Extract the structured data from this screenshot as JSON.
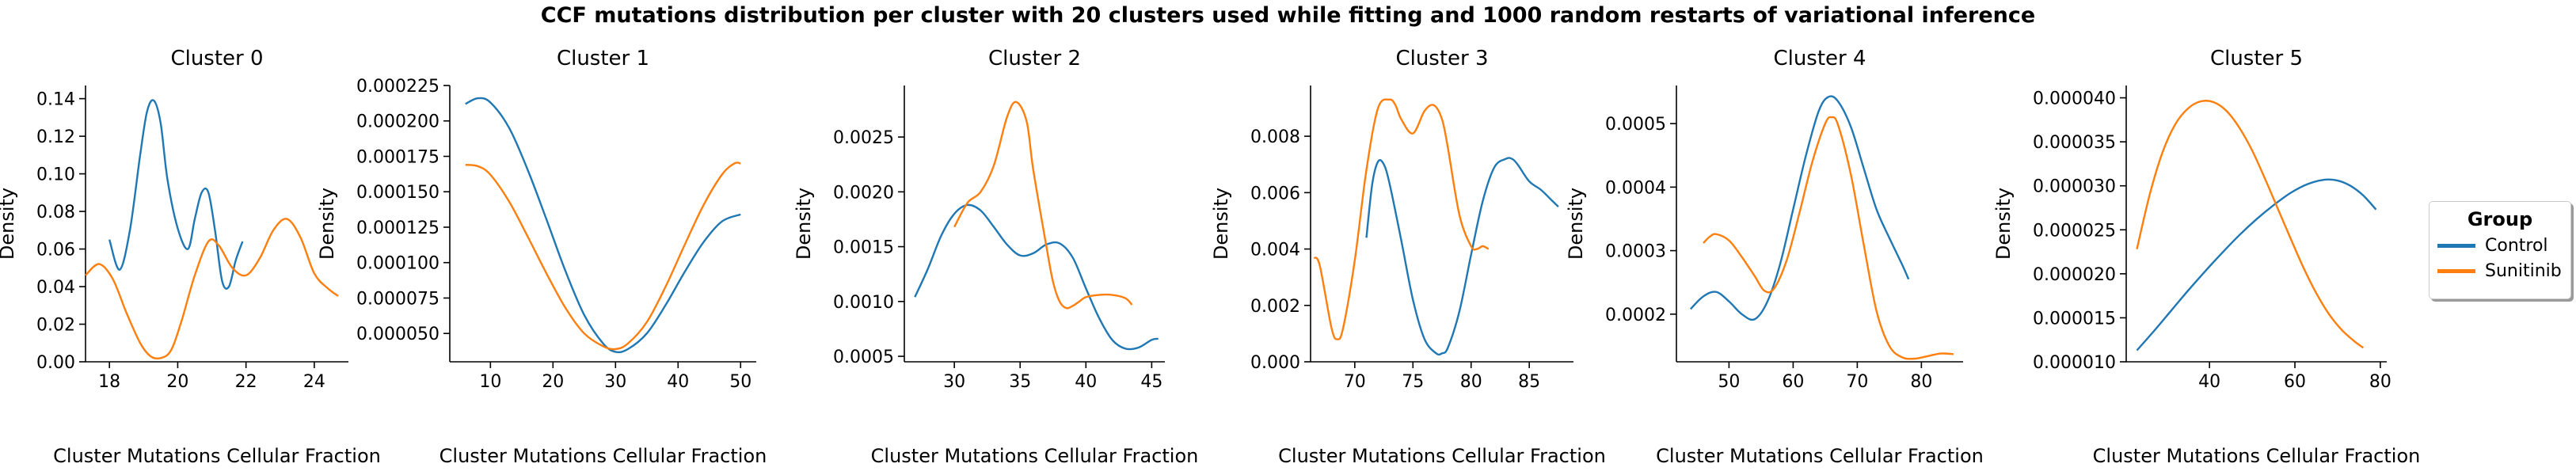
{
  "figure": {
    "suptitle": "CCF mutations distribution per cluster with 20 clusters used while fitting and 1000 random restarts of variational inference"
  },
  "legend": {
    "title": "Group",
    "placement": "right",
    "entries": [
      {
        "label": "Control",
        "color": "#1f77b4"
      },
      {
        "label": "Sunitinib",
        "color": "#ff7f0e"
      }
    ]
  },
  "chart_data": [
    {
      "type": "line",
      "title": "Cluster 0",
      "xlabel": "Cluster Mutations Cellular Fraction",
      "ylabel": "Density",
      "xlim": [
        17.3,
        25.0
      ],
      "ylim": [
        0,
        0.147
      ],
      "xticks": [
        18,
        20,
        22,
        24
      ],
      "yticks": [
        0.0,
        0.02,
        0.04,
        0.06,
        0.08,
        0.1,
        0.12,
        0.14
      ],
      "ytick_labels": [
        "0.00",
        "0.02",
        "0.04",
        "0.06",
        "0.08",
        "0.10",
        "0.12",
        "0.14"
      ],
      "series": [
        {
          "name": "Control",
          "color": "#1f77b4",
          "x": [
            18.0,
            18.3,
            18.6,
            18.9,
            19.1,
            19.3,
            19.5,
            19.7,
            20.0,
            20.3,
            20.5,
            20.7,
            20.9,
            21.1,
            21.3,
            21.5,
            21.7,
            21.9
          ],
          "y": [
            0.065,
            0.049,
            0.07,
            0.11,
            0.133,
            0.139,
            0.127,
            0.097,
            0.071,
            0.06,
            0.076,
            0.09,
            0.09,
            0.069,
            0.043,
            0.04,
            0.054,
            0.064
          ]
        },
        {
          "name": "Sunitinib",
          "color": "#ff7f0e",
          "x": [
            17.3,
            17.7,
            18.1,
            18.5,
            18.9,
            19.2,
            19.5,
            19.8,
            20.1,
            20.5,
            20.9,
            21.2,
            21.6,
            22.0,
            22.4,
            22.8,
            23.2,
            23.6,
            24.0,
            24.4,
            24.7
          ],
          "y": [
            0.046,
            0.052,
            0.044,
            0.026,
            0.01,
            0.003,
            0.002,
            0.006,
            0.021,
            0.046,
            0.064,
            0.062,
            0.05,
            0.046,
            0.055,
            0.07,
            0.076,
            0.066,
            0.047,
            0.039,
            0.035
          ]
        }
      ]
    },
    {
      "type": "line",
      "title": "Cluster 1",
      "xlabel": "Cluster Mutations Cellular Fraction",
      "ylabel": "Density",
      "xlim": [
        3.5,
        52.5
      ],
      "ylim": [
        3e-05,
        0.000225
      ],
      "xticks": [
        10,
        20,
        30,
        40,
        50
      ],
      "yticks": [
        5e-05,
        7.5e-05,
        0.0001,
        0.000125,
        0.00015,
        0.000175,
        0.0002,
        0.000225
      ],
      "ytick_labels": [
        "0.000050",
        "0.000075",
        "0.000100",
        "0.000125",
        "0.000150",
        "0.000175",
        "0.000200",
        "0.000225"
      ],
      "series": [
        {
          "name": "Control",
          "color": "#1f77b4",
          "x": [
            6,
            8,
            10,
            13,
            16,
            19,
            22,
            25,
            28,
            30,
            32,
            35,
            38,
            41,
            44,
            47,
            50
          ],
          "y": [
            0.000212,
            0.000216,
            0.000213,
            0.000195,
            0.000165,
            0.00013,
            9.4e-05,
            6.3e-05,
            4.3e-05,
            3.7e-05,
            3.9e-05,
            5e-05,
            7e-05,
            9.3e-05,
            0.000114,
            0.000129,
            0.000134
          ]
        },
        {
          "name": "Sunitinib",
          "color": "#ff7f0e",
          "x": [
            6,
            8,
            10,
            13,
            16,
            19,
            22,
            25,
            28,
            30,
            32,
            35,
            38,
            41,
            44,
            47,
            49,
            50
          ],
          "y": [
            0.000169,
            0.000168,
            0.000162,
            0.000143,
            0.000118,
            9.2e-05,
            6.8e-05,
            5e-05,
            4.1e-05,
            3.9e-05,
            4.3e-05,
            5.8e-05,
            8.3e-05,
            0.000112,
            0.00014,
            0.000162,
            0.00017,
            0.00017
          ]
        }
      ]
    },
    {
      "type": "line",
      "title": "Cluster 2",
      "xlabel": "Cluster Mutations Cellular Fraction",
      "ylabel": "Density",
      "xlim": [
        26.2,
        46.0
      ],
      "ylim": [
        0.00045,
        0.00297
      ],
      "xticks": [
        30,
        35,
        40,
        45
      ],
      "yticks": [
        0.0005,
        0.001,
        0.0015,
        0.002,
        0.0025
      ],
      "ytick_labels": [
        "0.0005",
        "0.0010",
        "0.0015",
        "0.0020",
        "0.0025"
      ],
      "series": [
        {
          "name": "Control",
          "color": "#1f77b4",
          "x": [
            27.0,
            28.0,
            29.0,
            30.0,
            31.0,
            32.0,
            33.0,
            34.0,
            35.0,
            36.0,
            37.0,
            38.0,
            39.0,
            40.0,
            41.0,
            42.0,
            43.0,
            44.0,
            45.0,
            45.5
          ],
          "y": [
            0.00104,
            0.0013,
            0.0016,
            0.0018,
            0.00188,
            0.00183,
            0.00168,
            0.00152,
            0.00142,
            0.00144,
            0.00152,
            0.00153,
            0.0014,
            0.00112,
            0.00085,
            0.00065,
            0.00057,
            0.00058,
            0.00065,
            0.00066
          ]
        },
        {
          "name": "Sunitinib",
          "color": "#ff7f0e",
          "x": [
            30.0,
            31.0,
            32.0,
            33.0,
            34.0,
            34.7,
            35.5,
            36.0,
            37.0,
            37.5,
            38.0,
            38.5,
            39.0,
            39.5,
            40.0,
            41.0,
            42.0,
            43.0,
            43.5
          ],
          "y": [
            0.00168,
            0.0019,
            0.002,
            0.00224,
            0.00268,
            0.00282,
            0.00264,
            0.0022,
            0.0015,
            0.00118,
            0.001,
            0.00094,
            0.00096,
            0.001,
            0.00104,
            0.00106,
            0.00106,
            0.00103,
            0.00097
          ]
        }
      ]
    },
    {
      "type": "line",
      "title": "Cluster 3",
      "xlabel": "Cluster Mutations Cellular Fraction",
      "ylabel": "Density",
      "xlim": [
        66.2,
        88.8
      ],
      "ylim": [
        0,
        0.0098
      ],
      "xticks": [
        70,
        75,
        80,
        85
      ],
      "yticks": [
        0.0,
        0.002,
        0.004,
        0.006,
        0.008
      ],
      "ytick_labels": [
        "0.000",
        "0.002",
        "0.004",
        "0.006",
        "0.008"
      ],
      "series": [
        {
          "name": "Control",
          "color": "#1f77b4",
          "x": [
            71.0,
            71.5,
            72.0,
            72.5,
            73.0,
            74.0,
            75.0,
            76.0,
            77.0,
            77.5,
            78.0,
            79.0,
            80.0,
            81.0,
            82.0,
            83.0,
            83.5,
            84.0,
            85.0,
            86.0,
            87.0,
            87.5
          ],
          "y": [
            0.0044,
            0.0063,
            0.0071,
            0.007,
            0.0063,
            0.0043,
            0.0022,
            0.0008,
            0.0003,
            0.0003,
            0.0005,
            0.0018,
            0.0038,
            0.0057,
            0.0069,
            0.0072,
            0.0072,
            0.007,
            0.0064,
            0.0061,
            0.0057,
            0.0055
          ]
        },
        {
          "name": "Sunitinib",
          "color": "#ff7f0e",
          "x": [
            66.5,
            67.0,
            68.0,
            68.5,
            69.0,
            70.0,
            71.0,
            72.0,
            73.0,
            73.5,
            74.0,
            75.0,
            76.0,
            76.8,
            77.5,
            78.0,
            79.0,
            80.0,
            80.5,
            81.0,
            81.5
          ],
          "y": [
            0.0037,
            0.0034,
            0.0012,
            0.0008,
            0.0012,
            0.0036,
            0.0068,
            0.009,
            0.0093,
            0.0091,
            0.0086,
            0.0081,
            0.0089,
            0.0091,
            0.0086,
            0.0076,
            0.0052,
            0.0041,
            0.004,
            0.0041,
            0.004
          ]
        }
      ]
    },
    {
      "type": "line",
      "title": "Cluster 4",
      "xlabel": "Cluster Mutations Cellular Fraction",
      "ylabel": "Density",
      "xlim": [
        41.8,
        86.5
      ],
      "ylim": [
        0.000125,
        0.00056
      ],
      "xticks": [
        50,
        60,
        70,
        80
      ],
      "yticks": [
        0.0002,
        0.0003,
        0.0004,
        0.0005
      ],
      "ytick_labels": [
        "0.0002",
        "0.0003",
        "0.0004",
        "0.0005"
      ],
      "series": [
        {
          "name": "Control",
          "color": "#1f77b4",
          "x": [
            44,
            46,
            48,
            50,
            52,
            54,
            56,
            58,
            60,
            62,
            64,
            65.5,
            67,
            69,
            71,
            73,
            75,
            77,
            78
          ],
          "y": [
            0.000208,
            0.000228,
            0.000235,
            0.00022,
            0.0002,
            0.000192,
            0.00022,
            0.00028,
            0.000365,
            0.00045,
            0.00052,
            0.000542,
            0.000535,
            0.000495,
            0.00043,
            0.000365,
            0.00032,
            0.000278,
            0.000255
          ]
        },
        {
          "name": "Sunitinib",
          "color": "#ff7f0e",
          "x": [
            46,
            47,
            48,
            50,
            52,
            54,
            55.5,
            57,
            59,
            61,
            63,
            65,
            66,
            67,
            69,
            71,
            73,
            75,
            77,
            79,
            81,
            83,
            85
          ],
          "y": [
            0.000312,
            0.000322,
            0.000326,
            0.000316,
            0.00029,
            0.00026,
            0.000237,
            0.00024,
            0.000285,
            0.00036,
            0.00044,
            0.0005,
            0.00051,
            0.000498,
            0.00042,
            0.00031,
            0.000205,
            0.00015,
            0.000132,
            0.00013,
            0.000134,
            0.000138,
            0.000137
          ]
        }
      ]
    },
    {
      "type": "line",
      "title": "Cluster 5",
      "xlabel": "Cluster Mutations Cellular Fraction",
      "ylabel": "Density",
      "xlim": [
        20.5,
        81.5
      ],
      "ylim": [
        1e-05,
        4.14e-05
      ],
      "xticks": [
        40,
        60,
        80
      ],
      "yticks": [
        1e-05,
        1.5e-05,
        2e-05,
        2.5e-05,
        3e-05,
        3.5e-05,
        4e-05
      ],
      "ytick_labels": [
        "0.000010",
        "0.000015",
        "0.000020",
        "0.000025",
        "0.000030",
        "0.000035",
        "0.000040"
      ],
      "series": [
        {
          "name": "Control",
          "color": "#1f77b4",
          "x": [
            23,
            27,
            31,
            35,
            39,
            43,
            47,
            51,
            55,
            59,
            63,
            67,
            70,
            73,
            76,
            79
          ],
          "y": [
            1.13e-05,
            1.35e-05,
            1.58e-05,
            1.81e-05,
            2.03e-05,
            2.24e-05,
            2.44e-05,
            2.62e-05,
            2.78e-05,
            2.92e-05,
            3.02e-05,
            3.07e-05,
            3.06e-05,
            3e-05,
            2.89e-05,
            2.73e-05
          ]
        },
        {
          "name": "Sunitinib",
          "color": "#ff7f0e",
          "x": [
            23,
            26,
            29,
            32,
            35,
            38,
            41,
            44,
            47,
            50,
            53,
            56,
            59,
            62,
            65,
            68,
            71,
            74,
            76
          ],
          "y": [
            2.28e-05,
            2.9e-05,
            3.38e-05,
            3.7e-05,
            3.88e-05,
            3.96e-05,
            3.95e-05,
            3.85e-05,
            3.66e-05,
            3.4e-05,
            3.08e-05,
            2.74e-05,
            2.4e-05,
            2.07e-05,
            1.78e-05,
            1.54e-05,
            1.36e-05,
            1.23e-05,
            1.16e-05
          ]
        }
      ]
    }
  ]
}
